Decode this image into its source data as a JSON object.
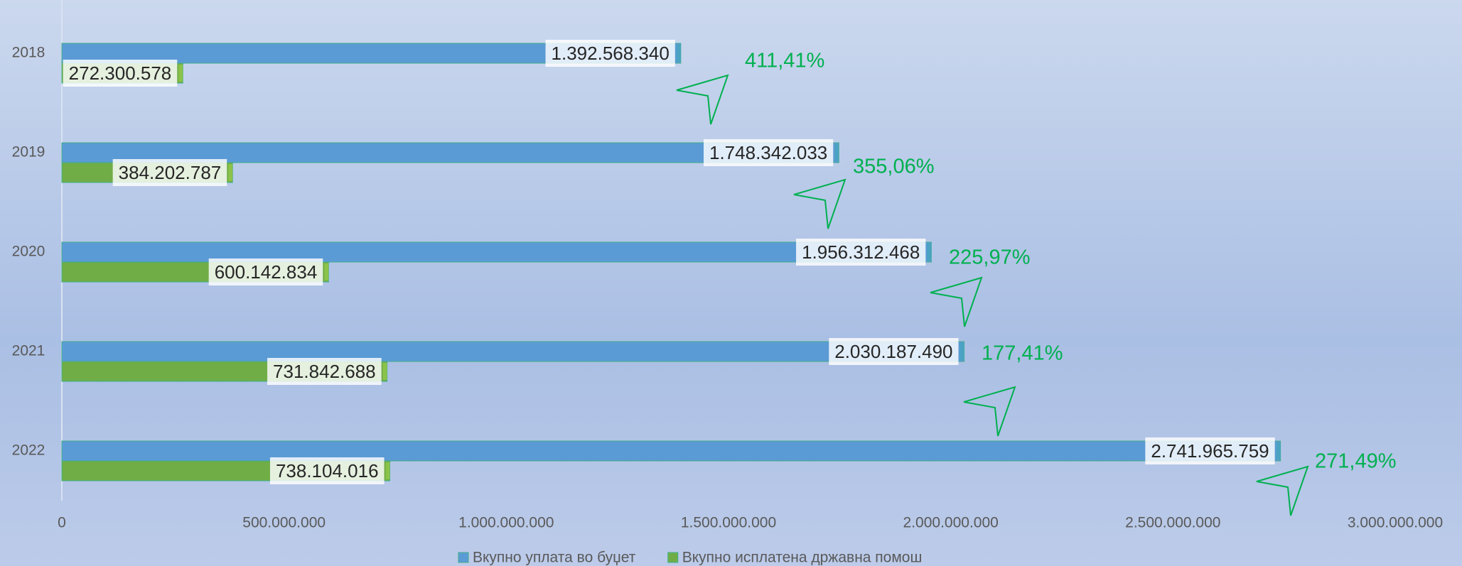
{
  "chart_data": {
    "type": "hbar",
    "categories": [
      "2018",
      "2019",
      "2020",
      "2021",
      "2022"
    ],
    "series": [
      {
        "name": "Вкупно уплата во буџет",
        "color": "#5b9bd5",
        "values": [
          1392568340,
          1748342033,
          1956312468,
          2030187490,
          2741965759
        ],
        "value_labels": [
          "1.392.568.340",
          "1.748.342.033",
          "1.956.312.468",
          "2.030.187.490",
          "2.741.965.759"
        ]
      },
      {
        "name": "Вкупно исплатена државна помош",
        "color": "#70ad47",
        "values": [
          272300578,
          384202787,
          600142834,
          731842688,
          738104016
        ],
        "value_labels": [
          "272.300.578",
          "384.202.787",
          "600.142.834",
          "731.842.688",
          "738.104.016"
        ]
      }
    ],
    "annotations": [
      "411,41%",
      "355,06%",
      "225,97%",
      "177,41%",
      "271,49%"
    ],
    "xlim": [
      0,
      3000000000
    ],
    "xticks": [
      0,
      {
        "value": 500000000,
        "label": "500.000.000"
      },
      {
        "value": 1000000000,
        "label": "1.000.000.000"
      },
      {
        "value": 1500000000,
        "label": "1.500.000.000"
      },
      {
        "value": 2000000000,
        "label": "2.000.000.000"
      },
      {
        "value": 2500000000,
        "label": "2.500.000.000"
      },
      {
        "value": 3000000000,
        "label": "3.000.000.000"
      }
    ],
    "legend": "bottom"
  }
}
